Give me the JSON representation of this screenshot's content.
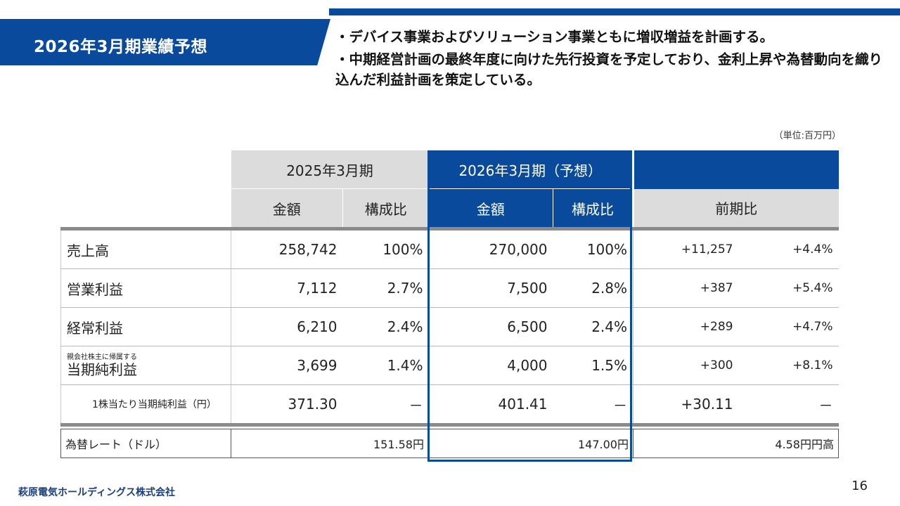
{
  "slide": {
    "title": "2026年3月期業績予想",
    "bullets": [
      "・デバイス事業およびソリューション事業ともに増収増益を計画する。",
      "・中期経営計画の最終年度に向けた先行投資を予定しており、金利上昇や為替動向を織り込んだ利益計画を策定している。"
    ],
    "unit_note": "（単位:百万円）",
    "company": "萩原電気ホールディングス株式会社",
    "page_number": "16",
    "colors": {
      "brand_blue": "#0a4a9c",
      "header_gray": "#dcdcdc"
    }
  },
  "table": {
    "period_prev": "2025年3月期",
    "period_forecast": "2026年3月期（予想）",
    "col_amount": "金額",
    "col_ratio": "構成比",
    "col_amount_f": "金額",
    "col_ratio_f": "構成比",
    "col_yoy": "前期比",
    "rows": [
      {
        "label_sub": "",
        "label": "売上高",
        "prev_amt": "258,742",
        "prev_ratio": "100%",
        "f_amt": "270,000",
        "f_ratio": "100%",
        "diff": "+11,257",
        "pct": "+4.4%"
      },
      {
        "label_sub": "",
        "label": "営業利益",
        "prev_amt": "7,112",
        "prev_ratio": "2.7%",
        "f_amt": "7,500",
        "f_ratio": "2.8%",
        "diff": "+387",
        "pct": "+5.4%"
      },
      {
        "label_sub": "",
        "label": "経常利益",
        "prev_amt": "6,210",
        "prev_ratio": "2.4%",
        "f_amt": "6,500",
        "f_ratio": "2.4%",
        "diff": "+289",
        "pct": "+4.7%"
      },
      {
        "label_sub": "親会社株主に帰属する",
        "label": "当期純利益",
        "prev_amt": "3,699",
        "prev_ratio": "1.4%",
        "f_amt": "4,000",
        "f_ratio": "1.5%",
        "diff": "+300",
        "pct": "+8.1%"
      },
      {
        "label_sub": "",
        "label": "1株当たり当期純利益（円）",
        "prev_amt": "371.30",
        "prev_ratio": "－",
        "f_amt": "401.41",
        "f_ratio": "－",
        "diff": "+30.11",
        "pct": "－"
      }
    ]
  },
  "rate": {
    "label": "為替レート（ドル）",
    "prev": "151.58円",
    "forecast": "147.00円",
    "change": "4.58円円高"
  }
}
